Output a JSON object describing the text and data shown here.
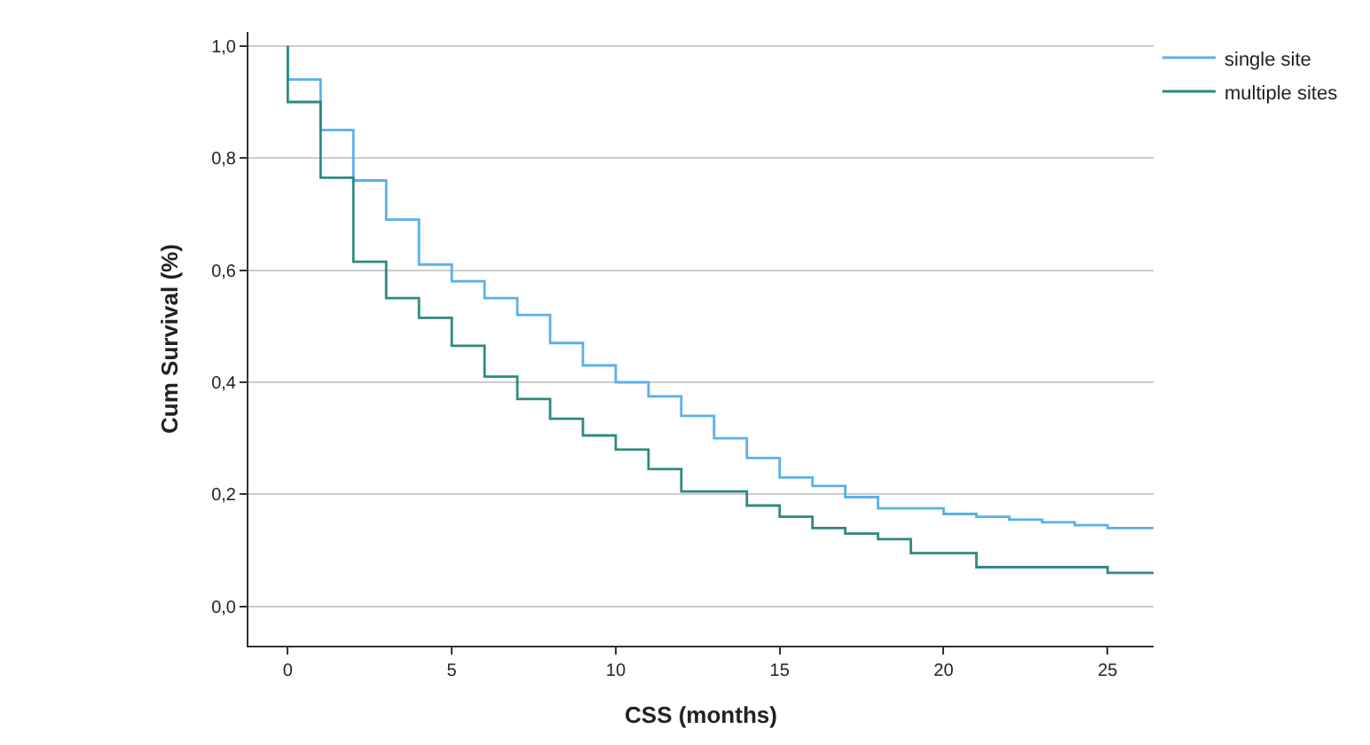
{
  "chart_data": {
    "type": "step",
    "xlabel": "CSS (months)",
    "ylabel": "Cum Survival (%)",
    "xlim": [
      -1.2,
      26.4
    ],
    "xticks": [
      0,
      5,
      10,
      15,
      20,
      25
    ],
    "ylim": [
      -0.07,
      1.025
    ],
    "yticks": [
      {
        "value": 0,
        "label": "0,0"
      },
      {
        "value": 0.2,
        "label": "0,2"
      },
      {
        "value": 0.4,
        "label": "0,4"
      },
      {
        "value": 0.6,
        "label": "0,6"
      },
      {
        "value": 0.8,
        "label": "0,8"
      },
      {
        "value": 1.0,
        "label": "1,0"
      }
    ],
    "grid": "y",
    "legend": "top right",
    "series": [
      {
        "name": "single site",
        "color": "#5ab0ea",
        "x": [
          0,
          0,
          1,
          2,
          3,
          4,
          5,
          6,
          7,
          8,
          9,
          10,
          11,
          12,
          13,
          14,
          15,
          16,
          17,
          18,
          20,
          21,
          22,
          23,
          24,
          25,
          26.4
        ],
        "values": [
          1.0,
          0.94,
          0.85,
          0.76,
          0.69,
          0.61,
          0.58,
          0.55,
          0.52,
          0.47,
          0.43,
          0.4,
          0.375,
          0.34,
          0.3,
          0.265,
          0.23,
          0.215,
          0.195,
          0.175,
          0.165,
          0.16,
          0.155,
          0.15,
          0.145,
          0.14,
          0.14
        ]
      },
      {
        "name": "multiple sites",
        "color": "#2e8a80",
        "x": [
          0,
          0,
          1,
          2,
          3,
          4,
          5,
          6,
          7,
          8,
          9,
          10,
          11,
          12,
          14,
          15,
          16,
          17,
          18,
          19,
          21,
          25,
          26.4
        ],
        "values": [
          1.0,
          0.9,
          0.765,
          0.615,
          0.55,
          0.515,
          0.465,
          0.41,
          0.37,
          0.335,
          0.305,
          0.28,
          0.245,
          0.205,
          0.18,
          0.16,
          0.14,
          0.13,
          0.12,
          0.095,
          0.07,
          0.06,
          0.06
        ]
      }
    ]
  }
}
